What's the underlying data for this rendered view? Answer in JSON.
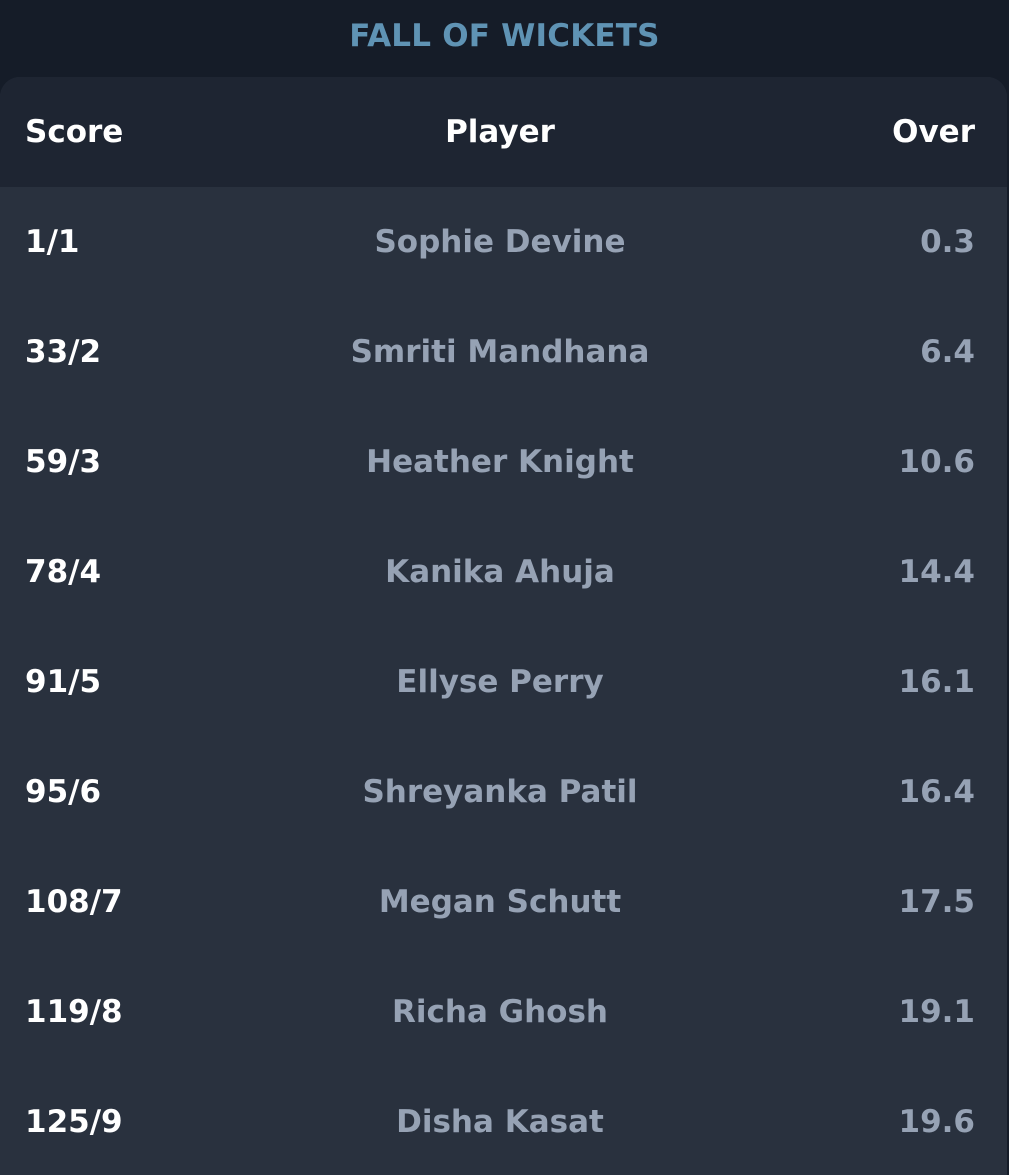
{
  "section": {
    "title": "FALL OF WICKETS"
  },
  "table": {
    "headers": {
      "score": "Score",
      "player": "Player",
      "over": "Over"
    },
    "rows": [
      {
        "score": "1/1",
        "player": "Sophie Devine",
        "over": "0.3"
      },
      {
        "score": "33/2",
        "player": "Smriti Mandhana",
        "over": "6.4"
      },
      {
        "score": "59/3",
        "player": "Heather Knight",
        "over": "10.6"
      },
      {
        "score": "78/4",
        "player": "Kanika Ahuja",
        "over": "14.4"
      },
      {
        "score": "91/5",
        "player": "Ellyse Perry",
        "over": "16.1"
      },
      {
        "score": "95/6",
        "player": "Shreyanka Patil",
        "over": "16.4"
      },
      {
        "score": "108/7",
        "player": "Megan Schutt",
        "over": "17.5"
      },
      {
        "score": "119/8",
        "player": "Richa Ghosh",
        "over": "19.1"
      },
      {
        "score": "125/9",
        "player": "Disha Kasat",
        "over": "19.6"
      }
    ]
  },
  "colors": {
    "title": "#5f93b4",
    "card_background": "#29313e",
    "header_background": "#1e2532",
    "score_text": "#ffffff",
    "secondary_text": "#96a2b4"
  }
}
